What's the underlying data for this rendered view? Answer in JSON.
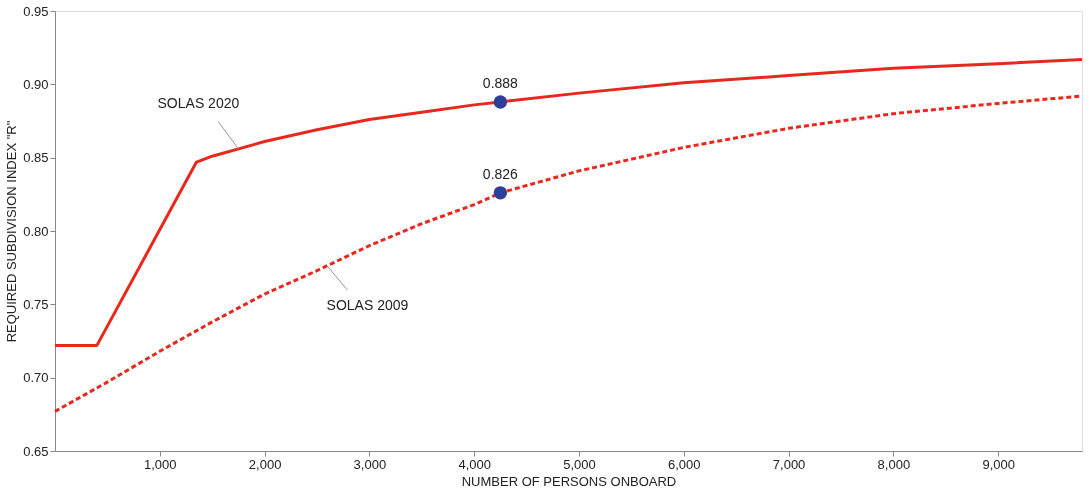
{
  "chart_data": {
    "type": "line",
    "xlabel": "NUMBER OF PERSONS ONBOARD",
    "ylabel": "REQUIRED SUBDIVISION INDEX \"R\"",
    "xlim": [
      0,
      9800
    ],
    "ylim": [
      0.65,
      0.95
    ],
    "xticks": [
      {
        "value": 1000,
        "label": "1,000"
      },
      {
        "value": 2000,
        "label": "2,000"
      },
      {
        "value": 3000,
        "label": "3,000"
      },
      {
        "value": 4000,
        "label": "4,000"
      },
      {
        "value": 5000,
        "label": "5,000"
      },
      {
        "value": 6000,
        "label": "6,000"
      },
      {
        "value": 7000,
        "label": "7,000"
      },
      {
        "value": 8000,
        "label": "8,000"
      },
      {
        "value": 9000,
        "label": "9,000"
      }
    ],
    "yticks": [
      0.65,
      {
        "value": 0.7,
        "label": "0.70"
      },
      0.75,
      {
        "value": 0.8,
        "label": "0.80"
      },
      0.85,
      {
        "value": 0.9,
        "label": "0.90"
      },
      0.95
    ],
    "grid": false,
    "series": [
      {
        "color": "#e8281e",
        "line_style": "solid",
        "x": [
          0,
          400,
          1350,
          1500,
          2000,
          2500,
          3000,
          3500,
          4000,
          4250,
          5000,
          6000,
          7000,
          8000,
          9000,
          9800
        ],
        "values": [
          0.722,
          0.722,
          0.847,
          0.851,
          0.861,
          0.869,
          0.876,
          0.881,
          0.886,
          0.888,
          0.894,
          0.901,
          0.906,
          0.911,
          0.914,
          0.917
        ]
      },
      {
        "color": "#e8281e",
        "line_style": "dashed",
        "x": [
          0,
          500,
          1000,
          1500,
          2000,
          2500,
          3000,
          3500,
          4000,
          4250,
          5000,
          6000,
          7000,
          8000,
          9000,
          9800
        ],
        "values": [
          0.677,
          0.697,
          0.718,
          0.738,
          0.757,
          0.773,
          0.79,
          0.805,
          0.818,
          0.826,
          0.841,
          0.857,
          0.87,
          0.88,
          0.887,
          0.892
        ]
      },
      {
        "type": "scatter",
        "color": "#2b3f9b",
        "marker": "circle",
        "data_labels": true,
        "x": [
          4250,
          4250
        ],
        "values": [
          0.888,
          0.826
        ]
      }
    ],
    "annotations": [
      {
        "text": "SOLAS 2020",
        "x": 1750,
        "y": 0.856
      },
      {
        "text": "SOLAS 2009",
        "x": 2600,
        "y": 0.776
      }
    ]
  }
}
